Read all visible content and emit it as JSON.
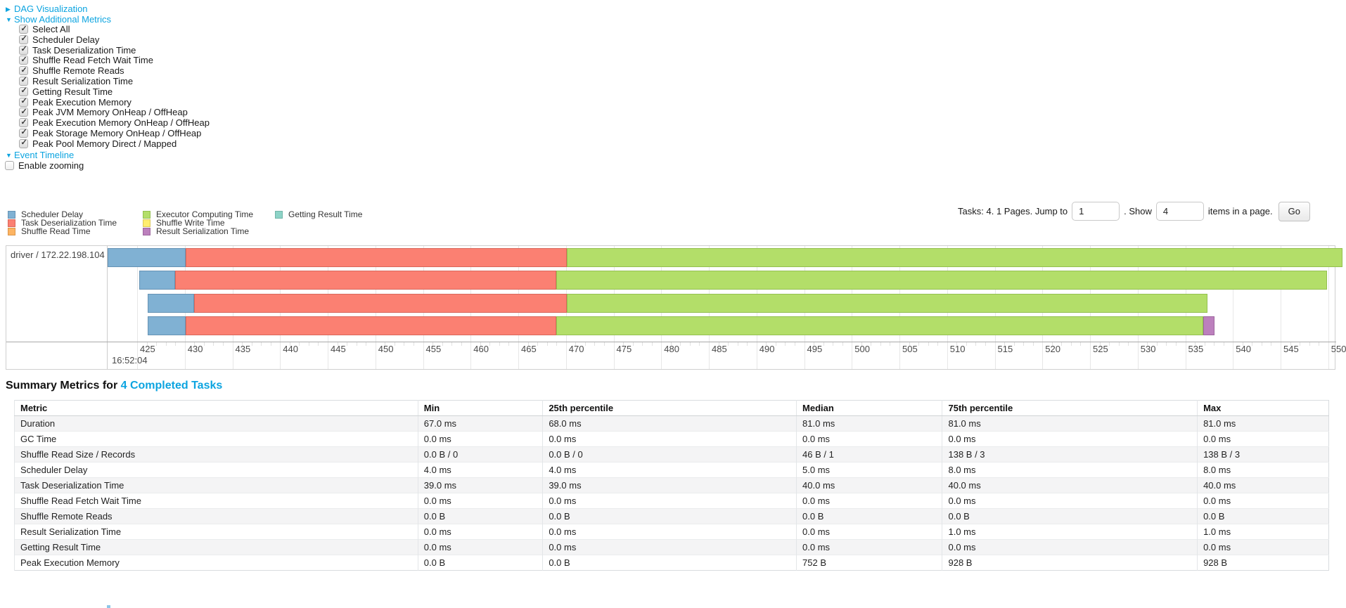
{
  "accent_link_color": "#0ca4e0",
  "sections": {
    "dag": {
      "label": "DAG Visualization",
      "expanded": false
    },
    "metrics": {
      "label": "Show Additional Metrics",
      "expanded": true
    },
    "timeline": {
      "label": "Event Timeline",
      "expanded": true
    }
  },
  "metrics_checkboxes": [
    {
      "label": "Select All",
      "checked": true
    },
    {
      "label": "Scheduler Delay",
      "checked": true
    },
    {
      "label": "Task Deserialization Time",
      "checked": true
    },
    {
      "label": "Shuffle Read Fetch Wait Time",
      "checked": true
    },
    {
      "label": "Shuffle Remote Reads",
      "checked": true
    },
    {
      "label": "Result Serialization Time",
      "checked": true
    },
    {
      "label": "Getting Result Time",
      "checked": true
    },
    {
      "label": "Peak Execution Memory",
      "checked": true
    },
    {
      "label": "Peak JVM Memory OnHeap / OffHeap",
      "checked": true
    },
    {
      "label": "Peak Execution Memory OnHeap / OffHeap",
      "checked": true
    },
    {
      "label": "Peak Storage Memory OnHeap / OffHeap",
      "checked": true
    },
    {
      "label": "Peak Pool Memory Direct / Mapped",
      "checked": true
    }
  ],
  "enable_zooming": {
    "label": "Enable zooming",
    "checked": false
  },
  "legend": [
    {
      "label": "Scheduler Delay",
      "color": "#80B1D3",
      "border": "#6693B5"
    },
    {
      "label": "Task Deserialization Time",
      "color": "#FB8072",
      "border": "#D9675B"
    },
    {
      "label": "Shuffle Read Time",
      "color": "#FDB462",
      "border": "#DB964B"
    },
    {
      "label": "Executor Computing Time",
      "color": "#B3DE69",
      "border": "#94C050"
    },
    {
      "label": "Shuffle Write Time",
      "color": "#FFED6F",
      "border": "#DCC95A"
    },
    {
      "label": "Result Serialization Time",
      "color": "#BC80BD",
      "border": "#9D669E"
    },
    {
      "label": "Getting Result Time",
      "color": "#8DD3C7",
      "border": "#72B5A9"
    }
  ],
  "pagination": {
    "prefix_text": "Tasks: 4. 1 Pages. Jump to",
    "jump_value": "1",
    "mid_text": ". Show",
    "show_value": "4",
    "suffix_text": "items in a page.",
    "go_label": "Go"
  },
  "chart_data": {
    "type": "timeline",
    "row_label": "driver / 172.22.198.104",
    "axis": {
      "tick_start": 425,
      "tick_end": 550,
      "tick_step": 5,
      "base_time_label": "16:52:04",
      "domain_note": "x values are ms offsets after 16:52:04"
    },
    "tasks": [
      {
        "segments": [
          {
            "metric": "Scheduler Delay",
            "start": 421.9,
            "end": 430.1
          },
          {
            "metric": "Task Deserialization Time",
            "start": 430.1,
            "end": 470.1
          },
          {
            "metric": "Executor Computing Time",
            "start": 470.1,
            "end": 551.5
          }
        ]
      },
      {
        "segments": [
          {
            "metric": "Scheduler Delay",
            "start": 425.2,
            "end": 429.0
          },
          {
            "metric": "Task Deserialization Time",
            "start": 429.0,
            "end": 469.0
          },
          {
            "metric": "Executor Computing Time",
            "start": 469.0,
            "end": 549.9
          }
        ]
      },
      {
        "segments": [
          {
            "metric": "Scheduler Delay",
            "start": 426.1,
            "end": 431.0
          },
          {
            "metric": "Task Deserialization Time",
            "start": 431.0,
            "end": 470.1
          },
          {
            "metric": "Executor Computing Time",
            "start": 470.1,
            "end": 537.3
          }
        ]
      },
      {
        "segments": [
          {
            "metric": "Scheduler Delay",
            "start": 426.1,
            "end": 430.1
          },
          {
            "metric": "Task Deserialization Time",
            "start": 430.1,
            "end": 469.0
          },
          {
            "metric": "Executor Computing Time",
            "start": 469.0,
            "end": 536.9
          },
          {
            "metric": "Result Serialization Time",
            "start": 536.9,
            "end": 538.1
          }
        ]
      }
    ]
  },
  "summary": {
    "title_prefix": "Summary Metrics for",
    "title_link": "4 Completed Tasks",
    "table": {
      "headers": [
        "Metric",
        "Min",
        "25th percentile",
        "Median",
        "75th percentile",
        "Max"
      ],
      "col_widths_pct": [
        30.7,
        9.5,
        19.3,
        11.1,
        19.4,
        10.0
      ],
      "rows": [
        [
          "Duration",
          "67.0 ms",
          "68.0 ms",
          "81.0 ms",
          "81.0 ms",
          "81.0 ms"
        ],
        [
          "GC Time",
          "0.0 ms",
          "0.0 ms",
          "0.0 ms",
          "0.0 ms",
          "0.0 ms"
        ],
        [
          "Shuffle Read Size / Records",
          "0.0 B / 0",
          "0.0 B / 0",
          "46 B / 1",
          "138 B / 3",
          "138 B / 3"
        ],
        [
          "Scheduler Delay",
          "4.0 ms",
          "4.0 ms",
          "5.0 ms",
          "8.0 ms",
          "8.0 ms"
        ],
        [
          "Task Deserialization Time",
          "39.0 ms",
          "39.0 ms",
          "40.0 ms",
          "40.0 ms",
          "40.0 ms"
        ],
        [
          "Shuffle Read Fetch Wait Time",
          "0.0 ms",
          "0.0 ms",
          "0.0 ms",
          "0.0 ms",
          "0.0 ms"
        ],
        [
          "Shuffle Remote Reads",
          "0.0 B",
          "0.0 B",
          "0.0 B",
          "0.0 B",
          "0.0 B"
        ],
        [
          "Result Serialization Time",
          "0.0 ms",
          "0.0 ms",
          "0.0 ms",
          "1.0 ms",
          "1.0 ms"
        ],
        [
          "Getting Result Time",
          "0.0 ms",
          "0.0 ms",
          "0.0 ms",
          "0.0 ms",
          "0.0 ms"
        ],
        [
          "Peak Execution Memory",
          "0.0 B",
          "0.0 B",
          "752 B",
          "928 B",
          "928 B"
        ]
      ]
    }
  }
}
